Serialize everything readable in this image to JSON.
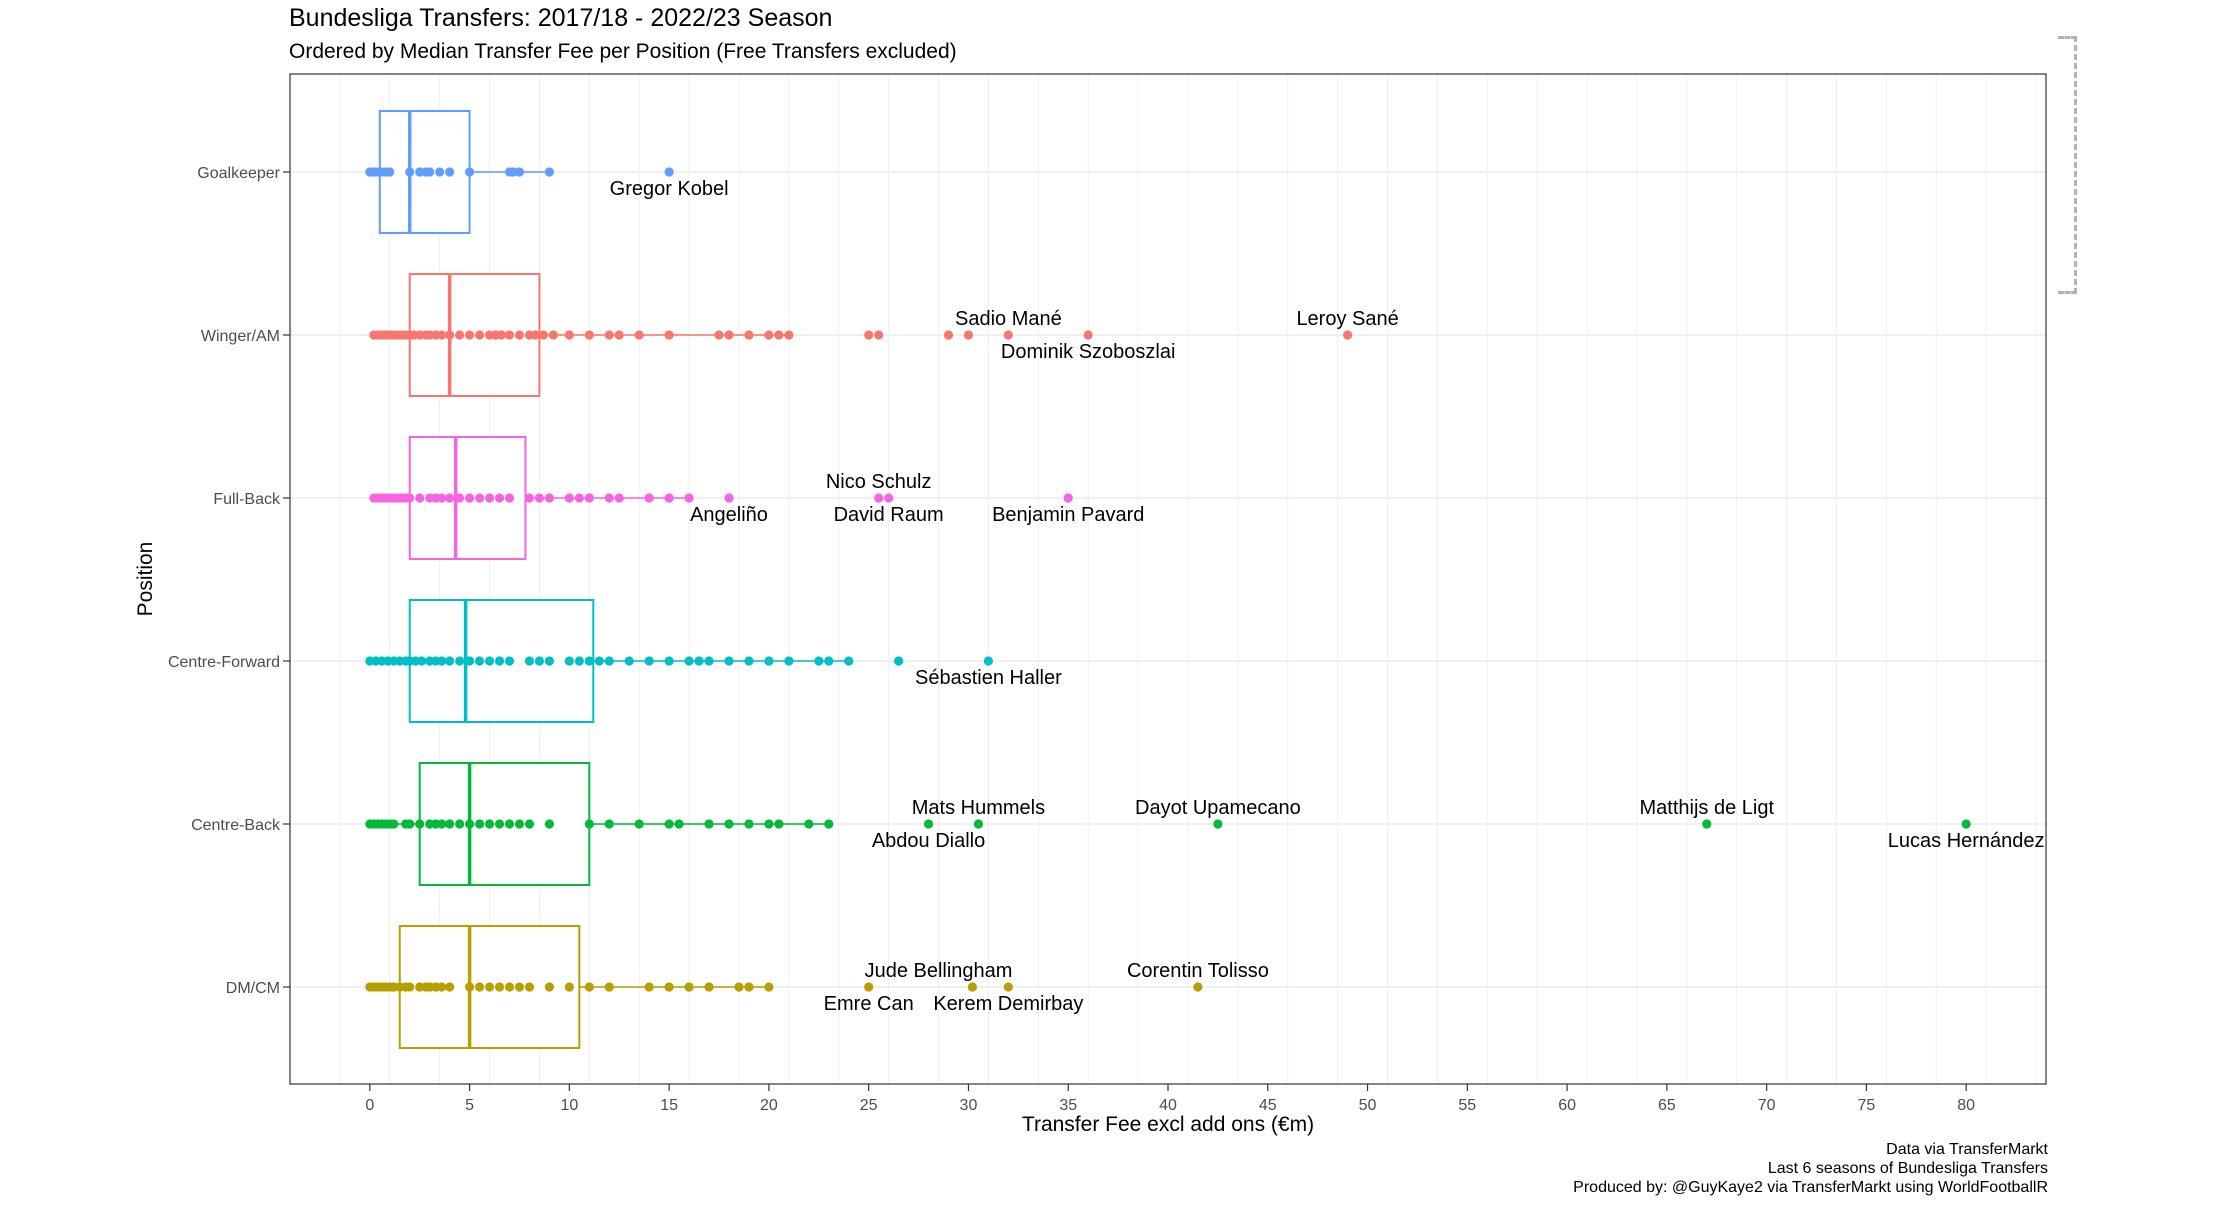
{
  "title": "Bundesliga Transfers: 2017/18 - 2022/23 Season",
  "subtitle": "Ordered by Median Transfer Fee per Position (Free Transfers excluded)",
  "caption": [
    "Data via TransferMarkt",
    "Last 6 seasons of Bundesliga Transfers",
    "Produced by: @GuyKaye2 via TransferMarkt using WorldFootballR"
  ],
  "chart_data": {
    "type": "box",
    "xlabel": "Transfer Fee excl add ons (€m)",
    "ylabel": "Position",
    "xlim": [
      -4,
      84
    ],
    "xticks": [
      0,
      5,
      10,
      15,
      20,
      25,
      30,
      35,
      40,
      45,
      50,
      55,
      60,
      65,
      70,
      75,
      80
    ],
    "grid": true,
    "series": [
      {
        "name": "Goalkeeper",
        "color": "#619CFF",
        "box": {
          "q1": 0.5,
          "median": 2.0,
          "q3": 5.0,
          "whisker_low": 0.0,
          "whisker_high": 9.0
        },
        "points": [
          0,
          0.2,
          0.3,
          0.5,
          0.6,
          0.8,
          1,
          2,
          2.5,
          2.8,
          3,
          3.5,
          4,
          5,
          7,
          7.2,
          7.5,
          9,
          15
        ],
        "labels": [
          {
            "text": "Gregor Kobel",
            "x": 15,
            "pos": "below"
          }
        ]
      },
      {
        "name": "Winger/AM",
        "color": "#F8766D",
        "box": {
          "q1": 2.0,
          "median": 4.0,
          "q3": 8.5,
          "whisker_low": 0.0,
          "whisker_high": 21.0
        },
        "points": [
          0.2,
          0.4,
          0.6,
          0.8,
          1,
          1.2,
          1.4,
          1.6,
          1.8,
          2,
          2.2,
          2.5,
          2.8,
          3,
          3.3,
          3.6,
          4,
          4.5,
          5,
          5.5,
          6,
          6.3,
          6.6,
          7,
          7.5,
          8,
          8.3,
          8.7,
          9.2,
          10,
          11,
          12,
          12.5,
          13.5,
          15,
          17.5,
          18,
          19,
          20,
          20.5,
          21,
          25,
          25.5,
          29,
          30,
          32,
          36,
          49
        ],
        "labels": [
          {
            "text": "Sadio Mané",
            "x": 32,
            "pos": "above"
          },
          {
            "text": "Dominik Szoboszlai",
            "x": 36,
            "pos": "below"
          },
          {
            "text": "Leroy Sané",
            "x": 49,
            "pos": "above"
          }
        ]
      },
      {
        "name": "Full-Back",
        "color": "#F564E3",
        "box": {
          "q1": 2.0,
          "median": 4.3,
          "q3": 7.8,
          "whisker_low": 0.2,
          "whisker_high": 16.0
        },
        "points": [
          0.2,
          0.4,
          0.6,
          0.8,
          1,
          1.2,
          1.4,
          1.6,
          1.8,
          2,
          2.5,
          3,
          3.3,
          3.6,
          4,
          4.5,
          5,
          5.5,
          6,
          6.5,
          7,
          8,
          8.5,
          9,
          10,
          10.5,
          11,
          12,
          12.5,
          14,
          15,
          16,
          18,
          25.5,
          26,
          35
        ],
        "labels": [
          {
            "text": "Angeliño",
            "x": 18,
            "pos": "below"
          },
          {
            "text": "Nico Schulz",
            "x": 25.5,
            "pos": "above"
          },
          {
            "text": "David Raum",
            "x": 26,
            "pos": "below"
          },
          {
            "text": "Benjamin Pavard",
            "x": 35,
            "pos": "below"
          }
        ]
      },
      {
        "name": "Centre-Forward",
        "color": "#00BFC4",
        "box": {
          "q1": 2.0,
          "median": 4.8,
          "q3": 11.2,
          "whisker_low": 0.0,
          "whisker_high": 24.0
        },
        "points": [
          0,
          0.3,
          0.6,
          0.9,
          1.2,
          1.5,
          1.8,
          2,
          2.3,
          2.6,
          3,
          3.3,
          3.6,
          4,
          4.5,
          5,
          5.5,
          6,
          6.5,
          7,
          8,
          8.5,
          9,
          10,
          10.5,
          11,
          11.5,
          12,
          13,
          14,
          15,
          16,
          16.5,
          17,
          18,
          19,
          20,
          21,
          22.5,
          23,
          24,
          26.5,
          31
        ],
        "labels": [
          {
            "text": "Sébastien Haller",
            "x": 31,
            "pos": "below"
          }
        ]
      },
      {
        "name": "Centre-Back",
        "color": "#00BA38",
        "box": {
          "q1": 2.5,
          "median": 5.0,
          "q3": 11.0,
          "whisker_low": 0.0,
          "whisker_high": 23.0
        },
        "points": [
          0,
          0.2,
          0.4,
          0.6,
          0.8,
          1,
          1.2,
          1.8,
          2,
          2.5,
          3,
          3.3,
          3.6,
          4,
          4.5,
          5,
          5.5,
          6,
          6.5,
          7,
          7.5,
          8,
          9,
          11,
          12,
          13.5,
          15,
          15.5,
          17,
          18,
          19,
          20,
          20.5,
          22,
          23,
          28,
          30.5,
          42.5,
          67,
          80
        ],
        "labels": [
          {
            "text": "Abdou Diallo",
            "x": 28,
            "pos": "below"
          },
          {
            "text": "Mats Hummels",
            "x": 30.5,
            "pos": "above"
          },
          {
            "text": "Dayot Upamecano",
            "x": 42.5,
            "pos": "above"
          },
          {
            "text": "Matthijs de Ligt",
            "x": 67,
            "pos": "above"
          },
          {
            "text": "Lucas Hernández",
            "x": 80,
            "pos": "below"
          }
        ]
      },
      {
        "name": "DM/CM",
        "color": "#B79F00",
        "box": {
          "q1": 1.5,
          "median": 5.0,
          "q3": 10.5,
          "whisker_low": 0.0,
          "whisker_high": 20.0
        },
        "points": [
          0,
          0.2,
          0.4,
          0.6,
          0.8,
          1,
          1.2,
          1.5,
          1.8,
          2,
          2.5,
          2.8,
          3,
          3.3,
          3.6,
          4,
          5,
          5.5,
          6,
          6.5,
          7,
          7.5,
          8,
          9,
          10,
          11,
          12,
          14,
          15,
          16,
          17,
          18.5,
          19,
          20,
          25,
          30.2,
          32,
          41.5
        ],
        "labels": [
          {
            "text": "Emre Can",
            "x": 25,
            "pos": "below"
          },
          {
            "text": "Jude Bellingham",
            "x": 28.5,
            "pos": "above"
          },
          {
            "text": "Kerem Demirbay",
            "x": 32,
            "pos": "below"
          },
          {
            "text": "Corentin Tolisso",
            "x": 41.5,
            "pos": "above"
          }
        ]
      }
    ]
  }
}
